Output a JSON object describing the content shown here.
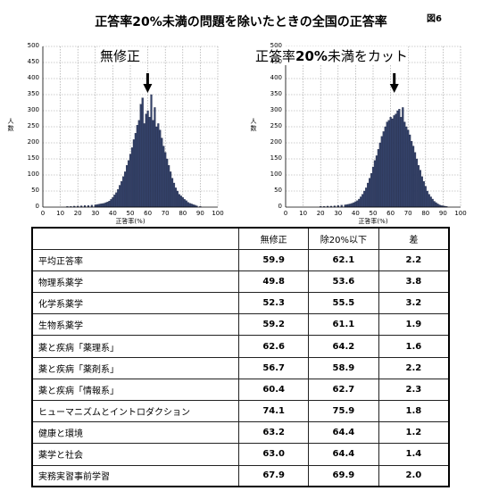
{
  "title": "正答率20%未満の問題を除いたときの全国の正答率",
  "figure_label": "図6",
  "chart_data": [
    {
      "type": "bar",
      "label": "無修正",
      "label_bold": "",
      "label_rest": "無修正",
      "ylabel": "人数",
      "xlabel": "正答率(%)",
      "ylim": [
        0,
        500
      ],
      "xlim": [
        0,
        100
      ],
      "y_ticks": [
        0,
        50,
        100,
        150,
        200,
        250,
        300,
        350,
        400,
        450,
        500
      ],
      "x_ticks": [
        0,
        10,
        20,
        30,
        40,
        50,
        60,
        70,
        80,
        90,
        100
      ],
      "grid": true,
      "arrow_at": 59.9,
      "x": [
        14,
        16,
        18,
        20,
        22,
        24,
        26,
        28,
        30,
        31,
        32,
        33,
        34,
        35,
        36,
        37,
        38,
        39,
        40,
        41,
        42,
        43,
        44,
        45,
        46,
        47,
        48,
        49,
        50,
        51,
        52,
        53,
        54,
        55,
        56,
        57,
        58,
        59,
        60,
        61,
        62,
        63,
        64,
        65,
        66,
        67,
        68,
        69,
        70,
        71,
        72,
        73,
        74,
        75,
        76,
        77,
        78,
        79,
        80,
        81,
        82,
        83,
        84,
        85,
        86,
        87,
        88,
        90
      ],
      "values": [
        2,
        2,
        3,
        3,
        4,
        5,
        5,
        6,
        7,
        8,
        9,
        10,
        11,
        12,
        14,
        16,
        19,
        24,
        30,
        38,
        45,
        55,
        68,
        80,
        95,
        110,
        130,
        145,
        165,
        185,
        210,
        230,
        255,
        270,
        320,
        340,
        260,
        290,
        300,
        280,
        350,
        270,
        310,
        250,
        260,
        240,
        215,
        190,
        170,
        150,
        130,
        110,
        90,
        75,
        60,
        50,
        40,
        35,
        30,
        24,
        20,
        15,
        12,
        10,
        8,
        6,
        4,
        2
      ]
    },
    {
      "type": "bar",
      "label": "正答率20%未満をカット",
      "label_bold": "20%",
      "label_pre": "正答率",
      "label_post": "未満をカット",
      "ylabel": "人数",
      "xlabel": "正答率(%)",
      "ylim": [
        0,
        500
      ],
      "xlim": [
        0,
        100
      ],
      "y_ticks": [
        0,
        50,
        100,
        150,
        200,
        250,
        300,
        350,
        400,
        450,
        500
      ],
      "x_ticks": [
        0,
        10,
        20,
        30,
        40,
        50,
        60,
        70,
        80,
        90,
        100
      ],
      "grid": true,
      "arrow_at": 62.1,
      "x": [
        20,
        22,
        24,
        26,
        28,
        30,
        32,
        34,
        35,
        36,
        37,
        38,
        39,
        40,
        41,
        42,
        43,
        44,
        45,
        46,
        47,
        48,
        49,
        50,
        51,
        52,
        53,
        54,
        55,
        56,
        57,
        58,
        59,
        60,
        61,
        62,
        63,
        64,
        65,
        66,
        67,
        68,
        69,
        70,
        71,
        72,
        73,
        74,
        75,
        76,
        77,
        78,
        79,
        80,
        81,
        82,
        83,
        84,
        85,
        86,
        87,
        88,
        89,
        90,
        91,
        92
      ],
      "values": [
        2,
        2,
        3,
        3,
        4,
        5,
        6,
        7,
        8,
        9,
        10,
        12,
        14,
        17,
        20,
        25,
        32,
        40,
        50,
        60,
        75,
        90,
        105,
        125,
        145,
        160,
        180,
        200,
        220,
        235,
        250,
        265,
        270,
        280,
        275,
        285,
        290,
        300,
        305,
        280,
        310,
        265,
        250,
        240,
        225,
        205,
        190,
        170,
        150,
        130,
        115,
        95,
        80,
        65,
        50,
        40,
        32,
        25,
        18,
        14,
        10,
        7,
        5,
        4,
        3,
        2
      ]
    }
  ],
  "table": {
    "headers": [
      "",
      "無修正",
      "除20%以下",
      "差"
    ],
    "rows": [
      {
        "name": "平均正答率",
        "a": "59.9",
        "b": "62.1",
        "d": "2.2"
      },
      {
        "name": "物理系薬学",
        "a": "49.8",
        "b": "53.6",
        "d": "3.8"
      },
      {
        "name": "化学系薬学",
        "a": "52.3",
        "b": "55.5",
        "d": "3.2"
      },
      {
        "name": "生物系薬学",
        "a": "59.2",
        "b": "61.1",
        "d": "1.9"
      },
      {
        "name": "薬と疾病「薬理系」",
        "a": "62.6",
        "b": "64.2",
        "d": "1.6"
      },
      {
        "name": "薬と疾病「薬剤系」",
        "a": "56.7",
        "b": "58.9",
        "d": "2.2"
      },
      {
        "name": "薬と疾病「情報系」",
        "a": "60.4",
        "b": "62.7",
        "d": "2.3"
      },
      {
        "name": "ヒューマニズムとイントロダクション",
        "a": "74.1",
        "b": "75.9",
        "d": "1.8"
      },
      {
        "name": "健康と環境",
        "a": "63.2",
        "b": "64.4",
        "d": "1.2"
      },
      {
        "name": "薬学と社会",
        "a": "63.0",
        "b": "64.4",
        "d": "1.4"
      },
      {
        "name": "実務実習事前学習",
        "a": "67.9",
        "b": "69.9",
        "d": "2.0"
      }
    ]
  },
  "colors": {
    "bar": "#34426a",
    "bar_edge": "#1c2440",
    "grid": "#9a9a9a",
    "axis": "#000000"
  }
}
